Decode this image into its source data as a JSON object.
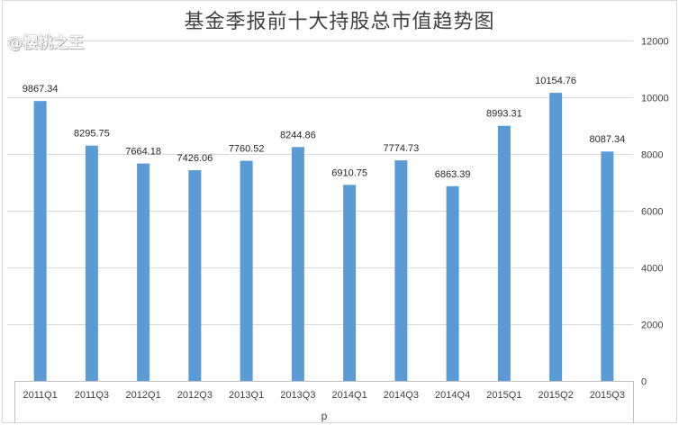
{
  "title": "基金季报前十大持股总市值趋势图",
  "watermark": "@樱桃之王",
  "colors": {
    "bar": "#5B9BD5",
    "grid": "#d9d9d9",
    "text": "#404040"
  },
  "chart_data": {
    "type": "bar",
    "title": "基金季报前十大持股总市值趋势图",
    "xlabel": "p",
    "ylabel": "",
    "categories": [
      "2011Q1",
      "2011Q3",
      "2012Q1",
      "2012Q3",
      "2013Q1",
      "2013Q3",
      "2014Q1",
      "2014Q3",
      "2014Q4",
      "2015Q1",
      "2015Q2",
      "2015Q3"
    ],
    "values": [
      9867.34,
      8295.75,
      7664.18,
      7426.06,
      7760.52,
      8244.86,
      6910.75,
      7774.73,
      6863.39,
      8993.31,
      10154.76,
      8087.34
    ],
    "value_labels": [
      "9867.34",
      "8295.75",
      "7664.18",
      "7426.06",
      "7760.52",
      "8244.86",
      "6910.75",
      "7774.73",
      "6863.39",
      "8993.31",
      "10154.76",
      "8087.34"
    ],
    "ylim": [
      0,
      12000
    ],
    "yticks": [
      0,
      2000,
      4000,
      6000,
      8000,
      10000,
      12000
    ],
    "ytick_labels": [
      "0",
      "2000",
      "4000",
      "6000",
      "8000",
      "10000",
      "12000"
    ],
    "y_axis_position": "right",
    "grid": true,
    "legend": null,
    "data_labels": true
  }
}
